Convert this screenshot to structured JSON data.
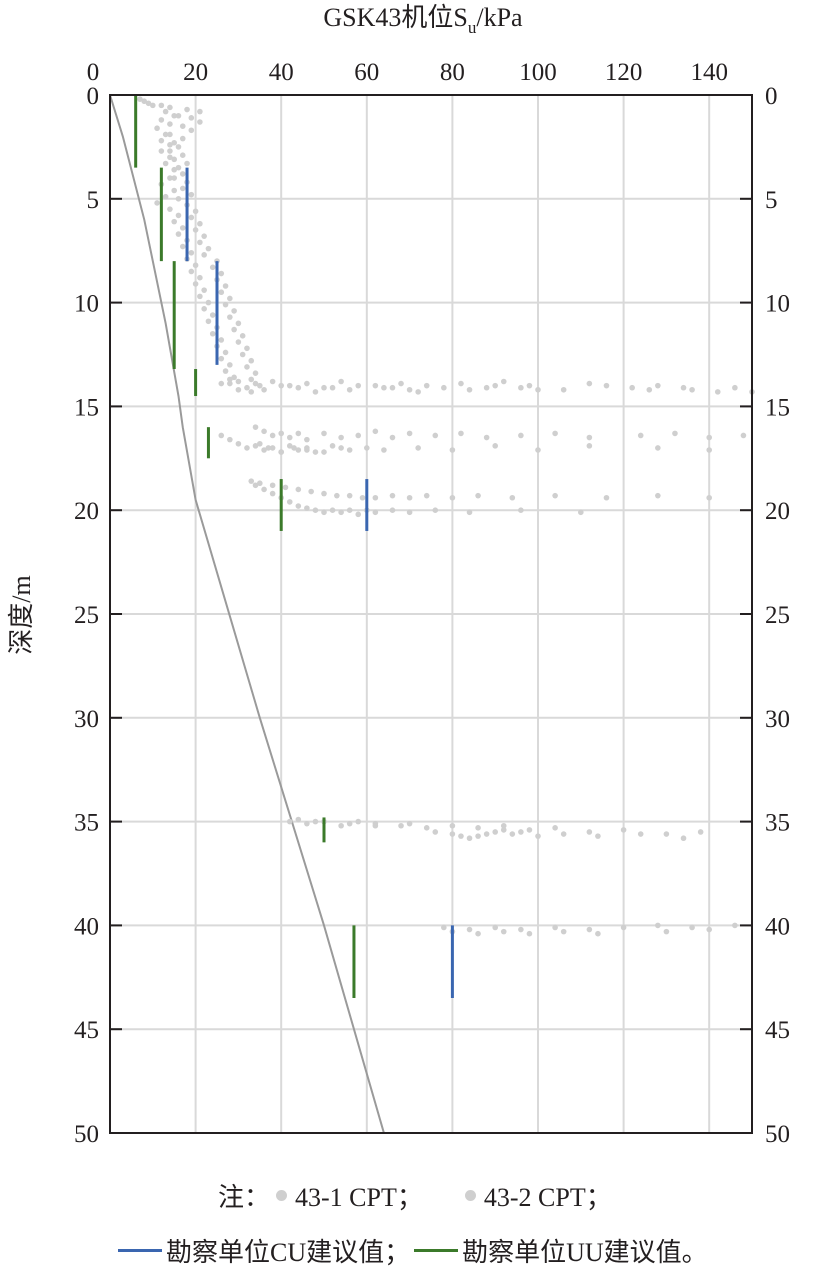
{
  "chart_data": {
    "type": "scatter",
    "title": "GSK43机位S",
    "title_sub": "u",
    "title_unit": "/kPa",
    "xlabel": "GSK43机位Su/kPa",
    "ylabel": "深度/m",
    "xlim": [
      0,
      150
    ],
    "ylim": [
      0,
      50
    ],
    "y_inverted": true,
    "x_axis_position": "top",
    "x_ticks": [
      "0",
      "20",
      "40",
      "60",
      "80",
      "100",
      "120",
      "140"
    ],
    "y_ticks": [
      "0",
      "5",
      "10",
      "15",
      "20",
      "25",
      "30",
      "35",
      "40",
      "45",
      "50"
    ],
    "grid": true,
    "colors": {
      "cpt": "#cfcfcf",
      "cu": "#3a66b0",
      "uu": "#3b7a2a",
      "trend": "#9a9a9a",
      "grid": "#d9d9d9",
      "axis": "#231f20"
    },
    "trend_line": {
      "x": [
        0,
        3,
        8,
        13,
        16,
        17,
        20,
        35,
        50,
        64
      ],
      "y": [
        0,
        2,
        6,
        11,
        14.5,
        16,
        19.5,
        30,
        40,
        50
      ]
    },
    "cpt_43_1": {
      "points": [
        [
          7,
          0.2
        ],
        [
          9,
          0.4
        ],
        [
          12,
          0.5
        ],
        [
          14,
          0.6
        ],
        [
          18,
          0.7
        ],
        [
          21,
          0.8
        ],
        [
          16,
          1.0
        ],
        [
          19,
          1.1
        ],
        [
          21,
          1.3
        ],
        [
          17,
          1.5
        ],
        [
          19,
          1.7
        ],
        [
          14,
          1.9
        ],
        [
          17,
          2.1
        ],
        [
          15,
          2.3
        ],
        [
          16,
          2.5
        ],
        [
          14,
          2.7
        ],
        [
          17,
          2.9
        ],
        [
          15,
          3.1
        ],
        [
          18,
          3.3
        ],
        [
          16,
          3.5
        ],
        [
          17,
          3.8
        ],
        [
          15,
          4.0
        ],
        [
          18,
          4.2
        ],
        [
          17,
          4.5
        ],
        [
          19,
          4.8
        ],
        [
          16,
          5.0
        ],
        [
          18,
          5.3
        ],
        [
          20,
          5.6
        ],
        [
          19,
          5.9
        ],
        [
          21,
          6.2
        ],
        [
          20,
          6.5
        ],
        [
          22,
          6.8
        ],
        [
          21,
          7.1
        ],
        [
          23,
          7.4
        ],
        [
          22,
          7.7
        ],
        [
          25,
          8.0
        ],
        [
          24,
          8.3
        ],
        [
          26,
          8.6
        ],
        [
          25,
          8.9
        ],
        [
          27,
          9.2
        ],
        [
          26,
          9.5
        ],
        [
          28,
          9.8
        ],
        [
          27,
          10.1
        ],
        [
          29,
          10.4
        ],
        [
          28,
          10.7
        ],
        [
          30,
          11.0
        ],
        [
          29,
          11.3
        ],
        [
          31,
          11.6
        ],
        [
          30,
          11.9
        ],
        [
          32,
          12.2
        ],
        [
          31,
          12.5
        ],
        [
          33,
          12.8
        ],
        [
          32,
          13.1
        ],
        [
          34,
          13.4
        ],
        [
          33,
          13.7
        ],
        [
          35,
          14.0
        ],
        [
          33,
          14.3
        ],
        [
          28,
          13.7
        ],
        [
          30,
          13.8
        ],
        [
          34,
          13.9
        ],
        [
          38,
          13.8
        ],
        [
          42,
          14.0
        ],
        [
          46,
          13.9
        ],
        [
          50,
          14.1
        ],
        [
          54,
          13.8
        ],
        [
          58,
          14.0
        ],
        [
          64,
          14.1
        ],
        [
          68,
          13.9
        ],
        [
          70,
          14.2
        ],
        [
          74,
          14.0
        ],
        [
          82,
          13.9
        ],
        [
          88,
          14.1
        ],
        [
          92,
          13.8
        ],
        [
          98,
          14.0
        ],
        [
          100,
          14.2
        ],
        [
          112,
          13.9
        ],
        [
          122,
          14.1
        ],
        [
          128,
          14.0
        ],
        [
          136,
          14.2
        ],
        [
          146,
          14.1
        ],
        [
          150,
          14.3
        ],
        [
          34,
          16.0
        ],
        [
          36,
          16.2
        ],
        [
          38,
          16.4
        ],
        [
          40,
          16.3
        ],
        [
          42,
          16.5
        ],
        [
          44,
          16.3
        ],
        [
          46,
          16.6
        ],
        [
          50,
          16.3
        ],
        [
          54,
          16.5
        ],
        [
          58,
          16.4
        ],
        [
          62,
          16.2
        ],
        [
          66,
          16.5
        ],
        [
          70,
          16.3
        ],
        [
          76,
          16.4
        ],
        [
          82,
          16.3
        ],
        [
          88,
          16.5
        ],
        [
          96,
          16.4
        ],
        [
          104,
          16.3
        ],
        [
          112,
          16.5
        ],
        [
          124,
          16.4
        ],
        [
          132,
          16.3
        ],
        [
          140,
          16.5
        ],
        [
          148,
          16.4
        ],
        [
          35,
          16.8
        ],
        [
          37,
          17.0
        ],
        [
          40,
          17.2
        ],
        [
          43,
          17.0
        ],
        [
          46,
          17.1
        ],
        [
          50,
          17.2
        ],
        [
          54,
          17.0
        ],
        [
          33,
          18.6
        ],
        [
          35,
          18.7
        ],
        [
          38,
          18.8
        ],
        [
          41,
          18.9
        ],
        [
          44,
          19.0
        ],
        [
          47,
          19.1
        ],
        [
          50,
          19.2
        ],
        [
          53,
          19.3
        ],
        [
          56,
          19.3
        ],
        [
          59,
          19.4
        ],
        [
          62,
          19.4
        ],
        [
          66,
          19.3
        ],
        [
          70,
          19.4
        ],
        [
          74,
          19.3
        ],
        [
          80,
          19.4
        ],
        [
          86,
          19.3
        ],
        [
          94,
          19.4
        ],
        [
          104,
          19.3
        ],
        [
          116,
          19.4
        ],
        [
          128,
          19.3
        ],
        [
          140,
          19.4
        ],
        [
          42,
          35.0
        ],
        [
          46,
          35.1
        ],
        [
          50,
          35.0
        ],
        [
          54,
          35.2
        ],
        [
          58,
          35.0
        ],
        [
          62,
          35.1
        ],
        [
          68,
          35.2
        ],
        [
          74,
          35.3
        ],
        [
          80,
          35.2
        ],
        [
          86,
          35.3
        ],
        [
          92,
          35.2
        ],
        [
          98,
          35.4
        ],
        [
          104,
          35.3
        ],
        [
          112,
          35.5
        ],
        [
          120,
          35.4
        ],
        [
          130,
          35.6
        ],
        [
          138,
          35.5
        ],
        [
          78,
          40.1
        ],
        [
          84,
          40.2
        ],
        [
          90,
          40.1
        ],
        [
          96,
          40.2
        ],
        [
          104,
          40.1
        ],
        [
          112,
          40.2
        ],
        [
          120,
          40.1
        ],
        [
          128,
          40.0
        ],
        [
          136,
          40.1
        ],
        [
          146,
          40.0
        ]
      ]
    },
    "cpt_43_2": {
      "points": [
        [
          8,
          0.3
        ],
        [
          10,
          0.5
        ],
        [
          13,
          0.8
        ],
        [
          15,
          1.0
        ],
        [
          12,
          1.2
        ],
        [
          14,
          1.4
        ],
        [
          11,
          1.6
        ],
        [
          13,
          1.9
        ],
        [
          12,
          2.2
        ],
        [
          14,
          2.4
        ],
        [
          12,
          2.7
        ],
        [
          14,
          3.0
        ],
        [
          13,
          3.3
        ],
        [
          15,
          3.6
        ],
        [
          14,
          4.0
        ],
        [
          12,
          4.3
        ],
        [
          15,
          4.6
        ],
        [
          13,
          4.9
        ],
        [
          11,
          5.2
        ],
        [
          14,
          5.5
        ],
        [
          16,
          5.8
        ],
        [
          15,
          6.1
        ],
        [
          17,
          6.4
        ],
        [
          16,
          6.7
        ],
        [
          18,
          7.0
        ],
        [
          17,
          7.3
        ],
        [
          19,
          7.6
        ],
        [
          18,
          7.9
        ],
        [
          20,
          8.2
        ],
        [
          19,
          8.5
        ],
        [
          21,
          8.8
        ],
        [
          20,
          9.1
        ],
        [
          22,
          9.4
        ],
        [
          21,
          9.7
        ],
        [
          23,
          10.0
        ],
        [
          22,
          10.3
        ],
        [
          24,
          10.6
        ],
        [
          23,
          10.9
        ],
        [
          25,
          11.2
        ],
        [
          24,
          11.5
        ],
        [
          26,
          11.8
        ],
        [
          25,
          12.1
        ],
        [
          27,
          12.4
        ],
        [
          26,
          12.7
        ],
        [
          28,
          13.0
        ],
        [
          27,
          13.3
        ],
        [
          29,
          13.6
        ],
        [
          28,
          13.9
        ],
        [
          30,
          14.2
        ],
        [
          26,
          13.9
        ],
        [
          32,
          14.1
        ],
        [
          36,
          14.2
        ],
        [
          40,
          14.0
        ],
        [
          44,
          14.1
        ],
        [
          48,
          14.3
        ],
        [
          52,
          14.1
        ],
        [
          56,
          14.2
        ],
        [
          62,
          14.0
        ],
        [
          66,
          14.1
        ],
        [
          72,
          14.3
        ],
        [
          78,
          14.1
        ],
        [
          84,
          14.2
        ],
        [
          90,
          14.0
        ],
        [
          96,
          14.1
        ],
        [
          106,
          14.2
        ],
        [
          116,
          14.0
        ],
        [
          126,
          14.2
        ],
        [
          134,
          14.1
        ],
        [
          142,
          14.3
        ],
        [
          26,
          16.4
        ],
        [
          28,
          16.6
        ],
        [
          30,
          16.8
        ],
        [
          32,
          17.0
        ],
        [
          34,
          16.9
        ],
        [
          36,
          17.1
        ],
        [
          38,
          17.0
        ],
        [
          40,
          17.2
        ],
        [
          42,
          16.9
        ],
        [
          44,
          17.1
        ],
        [
          46,
          17.0
        ],
        [
          48,
          17.2
        ],
        [
          52,
          16.9
        ],
        [
          56,
          17.1
        ],
        [
          60,
          17.0
        ],
        [
          64,
          17.1
        ],
        [
          72,
          17.0
        ],
        [
          80,
          17.1
        ],
        [
          90,
          16.9
        ],
        [
          100,
          17.1
        ],
        [
          112,
          16.9
        ],
        [
          128,
          17.0
        ],
        [
          140,
          17.1
        ],
        [
          34,
          18.8
        ],
        [
          36,
          19.0
        ],
        [
          38,
          19.2
        ],
        [
          40,
          19.4
        ],
        [
          42,
          19.6
        ],
        [
          44,
          19.8
        ],
        [
          46,
          19.9
        ],
        [
          48,
          20.0
        ],
        [
          50,
          20.1
        ],
        [
          52,
          20.0
        ],
        [
          54,
          20.1
        ],
        [
          56,
          20.0
        ],
        [
          58,
          20.2
        ],
        [
          60,
          20.0
        ],
        [
          62,
          20.1
        ],
        [
          66,
          20.0
        ],
        [
          70,
          20.1
        ],
        [
          76,
          20.0
        ],
        [
          84,
          20.1
        ],
        [
          96,
          20.0
        ],
        [
          110,
          20.1
        ],
        [
          44,
          34.9
        ],
        [
          48,
          35.0
        ],
        [
          56,
          35.1
        ],
        [
          62,
          35.2
        ],
        [
          70,
          35.1
        ],
        [
          76,
          35.5
        ],
        [
          80,
          35.6
        ],
        [
          82,
          35.7
        ],
        [
          84,
          35.8
        ],
        [
          86,
          35.7
        ],
        [
          88,
          35.6
        ],
        [
          90,
          35.5
        ],
        [
          92,
          35.4
        ],
        [
          94,
          35.6
        ],
        [
          96,
          35.5
        ],
        [
          100,
          35.7
        ],
        [
          106,
          35.6
        ],
        [
          114,
          35.7
        ],
        [
          124,
          35.6
        ],
        [
          134,
          35.8
        ],
        [
          80,
          40.3
        ],
        [
          86,
          40.4
        ],
        [
          92,
          40.3
        ],
        [
          98,
          40.4
        ],
        [
          106,
          40.3
        ],
        [
          114,
          40.4
        ],
        [
          130,
          40.3
        ],
        [
          140,
          40.2
        ]
      ]
    },
    "cu_recommended": [
      {
        "x": 18,
        "y_top": 3.5,
        "y_bottom": 8
      },
      {
        "x": 25,
        "y_top": 8,
        "y_bottom": 13
      },
      {
        "x": 60,
        "y_top": 18.5,
        "y_bottom": 21
      },
      {
        "x": 80,
        "y_top": 40,
        "y_bottom": 43.5
      }
    ],
    "uu_recommended": [
      {
        "x": 6,
        "y_top": 0,
        "y_bottom": 3.5
      },
      {
        "x": 12,
        "y_top": 3.5,
        "y_bottom": 8
      },
      {
        "x": 15,
        "y_top": 8,
        "y_bottom": 13.2
      },
      {
        "x": 20,
        "y_top": 13.2,
        "y_bottom": 14.5
      },
      {
        "x": 23,
        "y_top": 16,
        "y_bottom": 17.5
      },
      {
        "x": 40,
        "y_top": 18.5,
        "y_bottom": 21
      },
      {
        "x": 50,
        "y_top": 34.8,
        "y_bottom": 36
      },
      {
        "x": 57,
        "y_top": 40,
        "y_bottom": 43.5
      }
    ]
  },
  "legend": {
    "note_prefix": "注：",
    "cpt1_label": "43-1 CPT；",
    "cpt2_label": "43-2 CPT；",
    "cu_label": "勘察单位CU建议值；",
    "uu_label": "勘察单位UU建议值。"
  }
}
